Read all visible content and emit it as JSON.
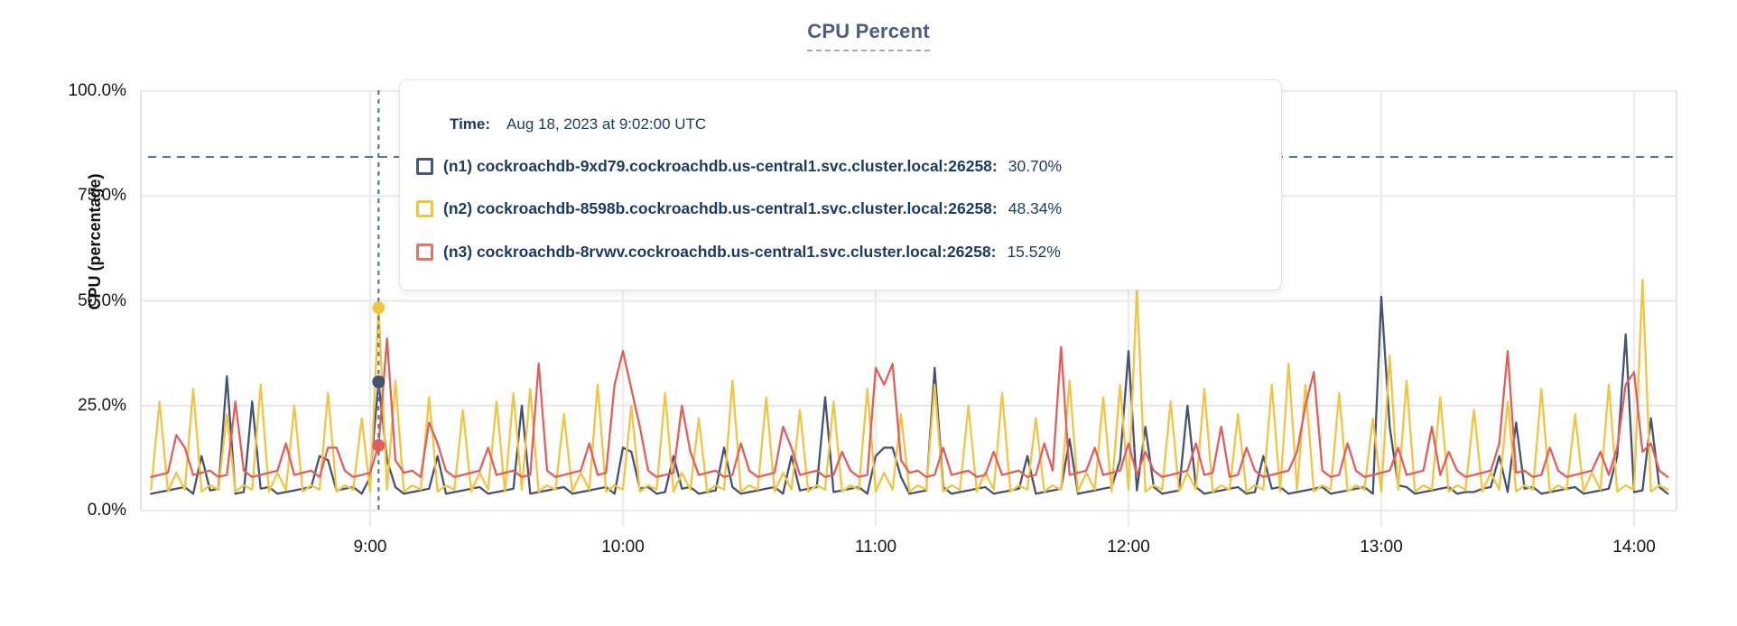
{
  "colors": {
    "n1_line": "#47536e",
    "n2_line": "#f2c443",
    "n3_line": "#e05f5d",
    "grid": "#ececec",
    "boundary": "#e4e4e4",
    "dashed_rule": "#5d7688",
    "title": "#4c5e79",
    "title_underline": "#9fabbd",
    "axis_text": "#161616",
    "tooltip_text": "#1c3a5e"
  },
  "tooltip": {
    "time_label": "Time:",
    "time_value": "Aug 18, 2023 at 9:02:00 UTC",
    "rows": [
      {
        "label": "(n1) cockroachdb-9xd79.cockroachdb.us-central1.svc.cluster.local:26258:",
        "value": "30.70%",
        "color": "#475872"
      },
      {
        "label": "(n2) cockroachdb-8598b.cockroachdb.us-central1.svc.cluster.local:26258:",
        "value": "48.34%",
        "color": "#efc53f"
      },
      {
        "label": "(n3) cockroachdb-8rvwv.cockroachdb.us-central1.svc.cluster.local:26258:",
        "value": "15.52%",
        "color": "#e4736e"
      }
    ]
  },
  "chart_data": {
    "type": "line",
    "title": "CPU Percent",
    "xlabel": "",
    "ylabel": "CPU (percentage)",
    "ylim": [
      0,
      100
    ],
    "grid": true,
    "legend_position": "tooltip-overlay",
    "y_ticks": {
      "labels": [
        "100.0%",
        "75.0%",
        "50.0%",
        "25.0%",
        "0.0%"
      ],
      "values": [
        100,
        75,
        50,
        25,
        0
      ]
    },
    "x_ticks": {
      "labels": [
        "9:00",
        "10:00",
        "11:00",
        "12:00",
        "13:00",
        "14:00"
      ],
      "minutes": [
        540,
        600,
        660,
        720,
        780,
        840
      ]
    },
    "x_range_minutes": [
      488,
      848
    ],
    "t0_minutes": 488,
    "step_minutes": 2,
    "threshold_pct": 84.3,
    "hover": {
      "time_minutes": 542,
      "time_text": "9:02:00 UTC"
    },
    "series": [
      {
        "name": "(n1) cockroachdb-9xd79.cockroachdb.us-central1.svc.cluster.local:26258",
        "color": "#47536e",
        "hover_value": 30.7,
        "values": [
          4,
          4.4,
          4.8,
          5.2,
          5.6,
          4,
          13,
          4.8,
          5.2,
          32,
          4,
          4.4,
          26,
          5.2,
          5.6,
          4,
          4.4,
          4.8,
          5.2,
          5.6,
          13,
          12,
          4.8,
          5.2,
          5.6,
          4,
          8,
          30.7,
          12,
          5.6,
          4,
          4.4,
          4.8,
          5.2,
          13,
          4,
          4.4,
          4.8,
          5.2,
          5.6,
          4,
          4.4,
          4.8,
          5.2,
          25,
          4,
          4.4,
          4.8,
          5.2,
          5.6,
          4,
          4.4,
          4.8,
          5.2,
          5.6,
          4,
          15,
          14,
          5.2,
          5.6,
          4,
          4.4,
          13,
          5.2,
          5.6,
          4,
          4.4,
          4.8,
          15,
          5.6,
          4,
          4.4,
          4.8,
          5.2,
          5.6,
          4,
          13,
          4.8,
          5.2,
          5.6,
          27,
          4.4,
          4.8,
          5.2,
          5.6,
          4,
          13,
          15,
          15,
          8,
          4,
          4.4,
          4.8,
          34,
          5.6,
          4,
          4.4,
          4.8,
          5.2,
          5.6,
          4,
          4.4,
          4.8,
          5.2,
          13,
          4,
          4.4,
          4.8,
          5.2,
          17,
          4,
          4.4,
          4.8,
          5.2,
          5.6,
          12,
          38,
          4.8,
          20,
          5.6,
          4,
          4.4,
          4.8,
          25,
          5.6,
          4,
          4.4,
          4.8,
          5.2,
          5.6,
          4,
          4.4,
          13,
          5.2,
          5.6,
          4,
          4.4,
          4.8,
          5.2,
          5.6,
          4,
          4.4,
          4.8,
          5.2,
          5.6,
          4,
          51,
          20,
          6,
          5.6,
          4,
          4.4,
          4.8,
          5.2,
          5.6,
          4,
          4.4,
          4.4,
          5.2,
          5.6,
          13,
          4.4,
          21,
          5.2,
          5.6,
          4,
          4.4,
          4.8,
          5.2,
          5.6,
          4,
          4.4,
          4.8,
          5.2,
          13,
          42,
          4.4,
          4.8,
          22,
          5.6,
          4
        ]
      },
      {
        "name": "(n2) cockroachdb-8598b.cockroachdb.us-central1.svc.cluster.local:26258",
        "color": "#f2c443",
        "hover_value": 48.34,
        "values": [
          5,
          26,
          4.5,
          9,
          5,
          29,
          4.5,
          6,
          5,
          23,
          4.5,
          6,
          5,
          30,
          4.5,
          9,
          5,
          25,
          4.5,
          6,
          5,
          28,
          4.5,
          6,
          5,
          22,
          4.5,
          48.34,
          5,
          31,
          4.5,
          6,
          5,
          27,
          4.5,
          6,
          5,
          24,
          4.5,
          9,
          5,
          26,
          4.5,
          28,
          5,
          29,
          4.5,
          6,
          5,
          23,
          4.5,
          9,
          5,
          30,
          4.5,
          6,
          5,
          25,
          4.5,
          6,
          5,
          28,
          4.5,
          9,
          5,
          22,
          4.5,
          6,
          5,
          31,
          4.5,
          6,
          5,
          27,
          4.5,
          9,
          5,
          24,
          4.5,
          6,
          5,
          26,
          4.5,
          6,
          5,
          29,
          4.5,
          9,
          5,
          23,
          4.5,
          6,
          5,
          30,
          4.5,
          6,
          5,
          25,
          4.5,
          9,
          5,
          28,
          4.5,
          6,
          5,
          22,
          4.5,
          6,
          5,
          31,
          4.5,
          9,
          5,
          27,
          4.5,
          30,
          5,
          53,
          4.5,
          6,
          5,
          26,
          4.5,
          9,
          5,
          29,
          4.5,
          6,
          5,
          23,
          4.5,
          6,
          5,
          30,
          4.5,
          35,
          5,
          30,
          4.5,
          6,
          5,
          28,
          4.5,
          6,
          5,
          22,
          4.5,
          37,
          5,
          31,
          4.5,
          6,
          5,
          27,
          4.5,
          6,
          5,
          24,
          4.5,
          9,
          5,
          26,
          4.5,
          6,
          5,
          29,
          4.5,
          6,
          5,
          23,
          4.5,
          9,
          5,
          30,
          4.5,
          6,
          5,
          55,
          4.5,
          6,
          5
        ]
      },
      {
        "name": "(n3) cockroachdb-8rvwv.cockroachdb.us-central1.svc.cluster.local:26258",
        "color": "#e05f5d",
        "hover_value": 15.52,
        "values": [
          8,
          8.5,
          9,
          18,
          15,
          8.5,
          9,
          9.5,
          8,
          8.5,
          26,
          9.5,
          8,
          8.5,
          9,
          9.5,
          16,
          8.5,
          9,
          9.5,
          8,
          15,
          15,
          9.5,
          8,
          8.5,
          9,
          15.52,
          41,
          12,
          9,
          9.5,
          8,
          21,
          16,
          9.5,
          8,
          8.5,
          9,
          9.5,
          15,
          8.5,
          9,
          9.5,
          8,
          8.5,
          35,
          9.5,
          8,
          8.5,
          9,
          9.5,
          16,
          8.5,
          9,
          30,
          38,
          29,
          20,
          9.5,
          8,
          8.5,
          9,
          25,
          14,
          8.5,
          9,
          9.5,
          8,
          8.5,
          16,
          9.5,
          8,
          8.5,
          9,
          20,
          15,
          8.5,
          9,
          9.5,
          8,
          8.5,
          14,
          9.5,
          8,
          8.5,
          34,
          30,
          35,
          12,
          9,
          9.5,
          8,
          8.5,
          15,
          8.5,
          9,
          9.5,
          8,
          8.5,
          14,
          8.5,
          9,
          9.5,
          8,
          8.5,
          16,
          9.5,
          39,
          8.5,
          9,
          9.5,
          15,
          8.5,
          9,
          9.5,
          16,
          8.5,
          14,
          9.5,
          8,
          8.5,
          9,
          9.5,
          16,
          8.5,
          9,
          20,
          8,
          8.5,
          15,
          9.5,
          8,
          8.5,
          9,
          9.5,
          14,
          25,
          33,
          9.5,
          8,
          8.5,
          16,
          9.5,
          8,
          8.5,
          9,
          9.5,
          15,
          8.5,
          9,
          9.5,
          20,
          8.5,
          14,
          9.5,
          8,
          8.5,
          9,
          9.5,
          16,
          38,
          9,
          9.5,
          8,
          8.5,
          15,
          9.5,
          8,
          8.5,
          9,
          9.5,
          14,
          8.5,
          15,
          30,
          33,
          14,
          16,
          9.5,
          8
        ]
      }
    ]
  }
}
